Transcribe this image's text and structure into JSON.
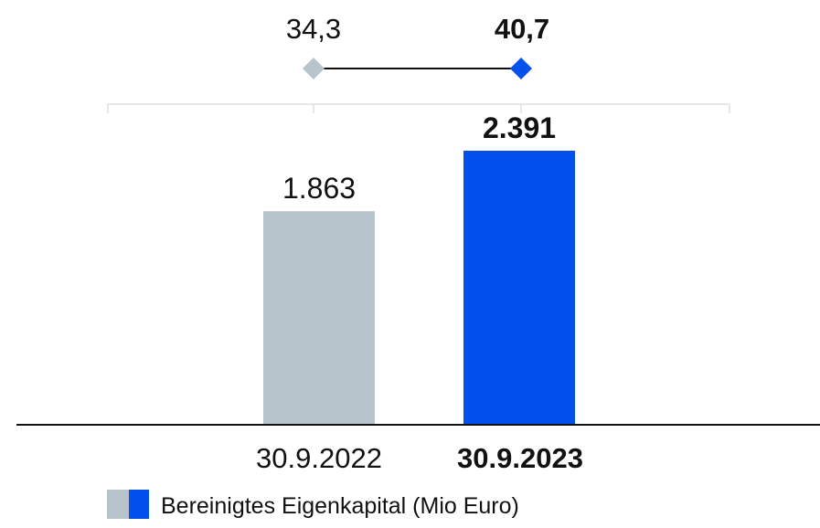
{
  "chart_data": [
    {
      "type": "line",
      "categories": [
        "30.9.2022",
        "30.9.2023"
      ],
      "values": [
        34.3,
        40.7
      ],
      "value_labels": [
        "34,3",
        "40,7"
      ],
      "bold": [
        false,
        true
      ],
      "colors": [
        "#b8c4cc",
        "#0450ec"
      ],
      "line_color": "#111111"
    },
    {
      "type": "bar",
      "categories": [
        "30.9.2022",
        "30.9.2023"
      ],
      "values": [
        1863,
        2391
      ],
      "value_labels": [
        "1.863",
        "2.391"
      ],
      "category_labels": [
        "30.9.2022",
        "30.9.2023"
      ],
      "bold": [
        false,
        true
      ],
      "colors": [
        "#b8c4cc",
        "#0450ec"
      ],
      "ylim": [
        0,
        2391
      ],
      "legend": {
        "label": "Bereinigtes Eigenkapital (Mio Euro)",
        "colors": [
          "#b8c4cc",
          "#0450ec"
        ],
        "position": "bottom-left"
      }
    }
  ]
}
